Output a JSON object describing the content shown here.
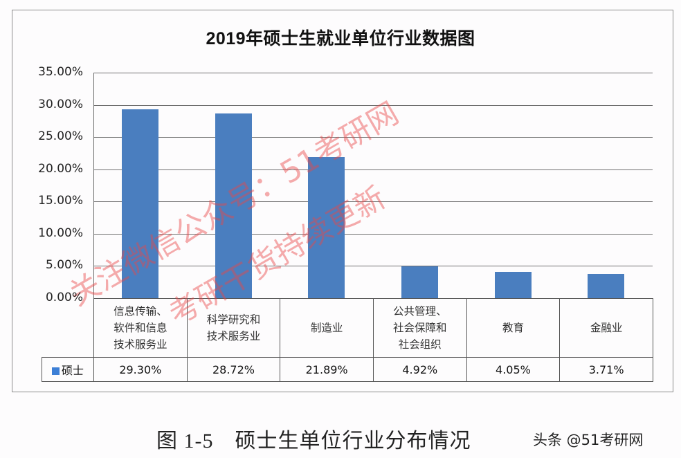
{
  "chart_data": {
    "type": "bar",
    "title": "2019年硕士生就业单位行业数据图",
    "xlabel": "",
    "ylabel": "",
    "ylim": [
      0,
      35
    ],
    "y_ticks": [
      "35.00%",
      "30.00%",
      "25.00%",
      "20.00%",
      "15.00%",
      "10.00%",
      "5.00%",
      "0.00%"
    ],
    "grid": true,
    "legend_position": "data-table",
    "categories": [
      "信息传输、软件和信息技术服务业",
      "科学研究和技术服务业",
      "制造业",
      "公共管理、社会保障和社会组织",
      "教育",
      "金融业"
    ],
    "category_lines": [
      [
        "信息传输、",
        "软件和信息",
        "技术服务业"
      ],
      [
        "科学研究和",
        "技术服务业"
      ],
      [
        "制造业"
      ],
      [
        "公共管理、",
        "社会保障和",
        "社会组织"
      ],
      [
        "教育"
      ],
      [
        "金融业"
      ]
    ],
    "series": [
      {
        "name": "硕士",
        "color": "#4a7ebf",
        "values": [
          29.3,
          28.72,
          21.89,
          4.92,
          4.05,
          3.71
        ],
        "labels": [
          "29.30%",
          "28.72%",
          "21.89%",
          "4.92%",
          "4.05%",
          "3.71%"
        ]
      }
    ]
  },
  "watermark": {
    "line1": "关注微信公众号：51考研网",
    "line2": "考研干货持续更新"
  },
  "caption": "图 1-5　硕士生单位行业分布情况",
  "credit": "头条 @51考研网"
}
